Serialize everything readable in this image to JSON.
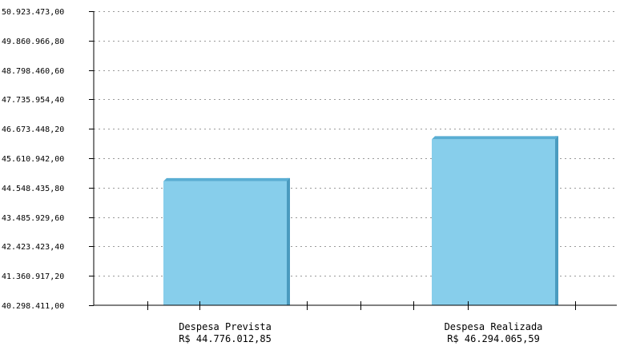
{
  "chart_data": {
    "type": "bar",
    "categories": [
      "Despesa Prevista",
      "Despesa Realizada"
    ],
    "values": [
      44776012.85,
      46294065.59
    ],
    "value_labels": [
      "R$ 44.776.012,85",
      "R$ 46.294.065,59"
    ],
    "ylim": [
      40298411.0,
      50923473.0
    ],
    "yticks": [
      "40.298.411,00",
      "41.360.917,20",
      "42.423.423,40",
      "43.485.929,60",
      "44.548.435,80",
      "45.610.942,00",
      "46.673.448,20",
      "47.735.954,40",
      "48.798.460,60",
      "49.860.966,80",
      "50.923.473,00"
    ],
    "grid": true,
    "legend": "none",
    "colors": {
      "bar_front": "#87ceeb",
      "bar_side": "#4a9bbf",
      "bar_top": "#5aaed3"
    }
  }
}
